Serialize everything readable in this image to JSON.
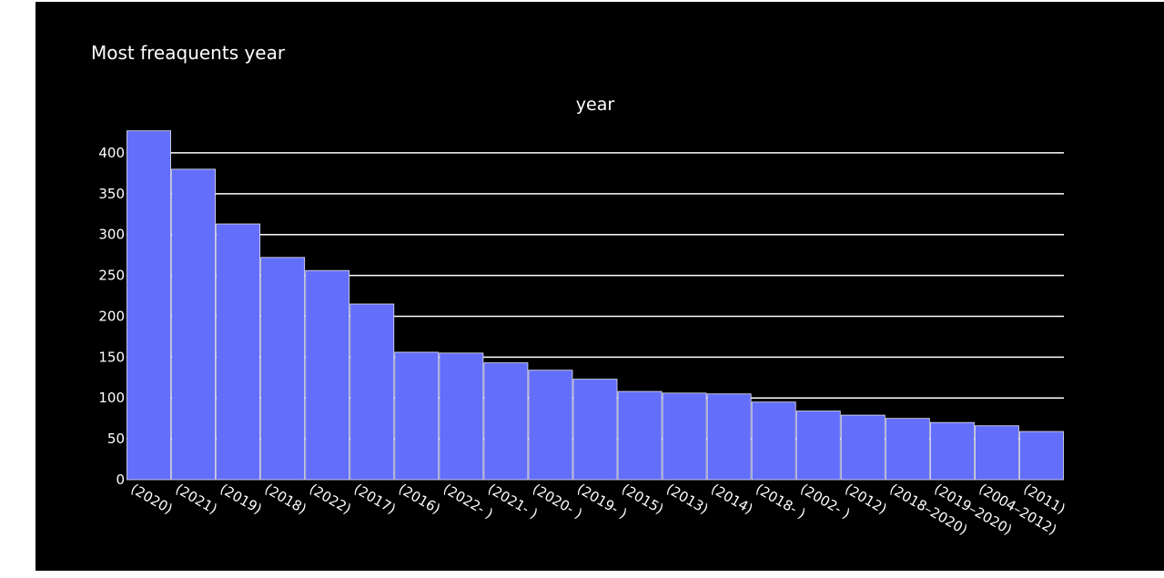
{
  "chart_data": {
    "type": "bar",
    "title": "Most freaquents year",
    "subtitle": "year",
    "xlabel": "",
    "ylabel": "",
    "ylim": [
      0,
      430
    ],
    "yticks": [
      0,
      50,
      100,
      150,
      200,
      250,
      300,
      350,
      400
    ],
    "grid": true,
    "categories": [
      "(2020)",
      "(2021)",
      "(2019)",
      "(2018)",
      "(2022)",
      "(2017)",
      "(2016)",
      "(2022- )",
      "(2021- )",
      "(2020- )",
      "(2019- )",
      "(2015)",
      "(2013)",
      "(2014)",
      "(2018- )",
      "(2002- )",
      "(2012)",
      "(2018–2020)",
      "(2019–2020)",
      "(2004–2012)",
      "(2011)"
    ],
    "values": [
      427,
      380,
      313,
      272,
      256,
      215,
      156,
      155,
      143,
      134,
      123,
      108,
      106,
      105,
      95,
      84,
      79,
      75,
      70,
      66,
      59
    ],
    "colors": {
      "background": "#000000",
      "bar": "#636efa",
      "bar_edge": "#e5e5f5",
      "grid": "#ffffff",
      "text": "#ffffff"
    }
  }
}
